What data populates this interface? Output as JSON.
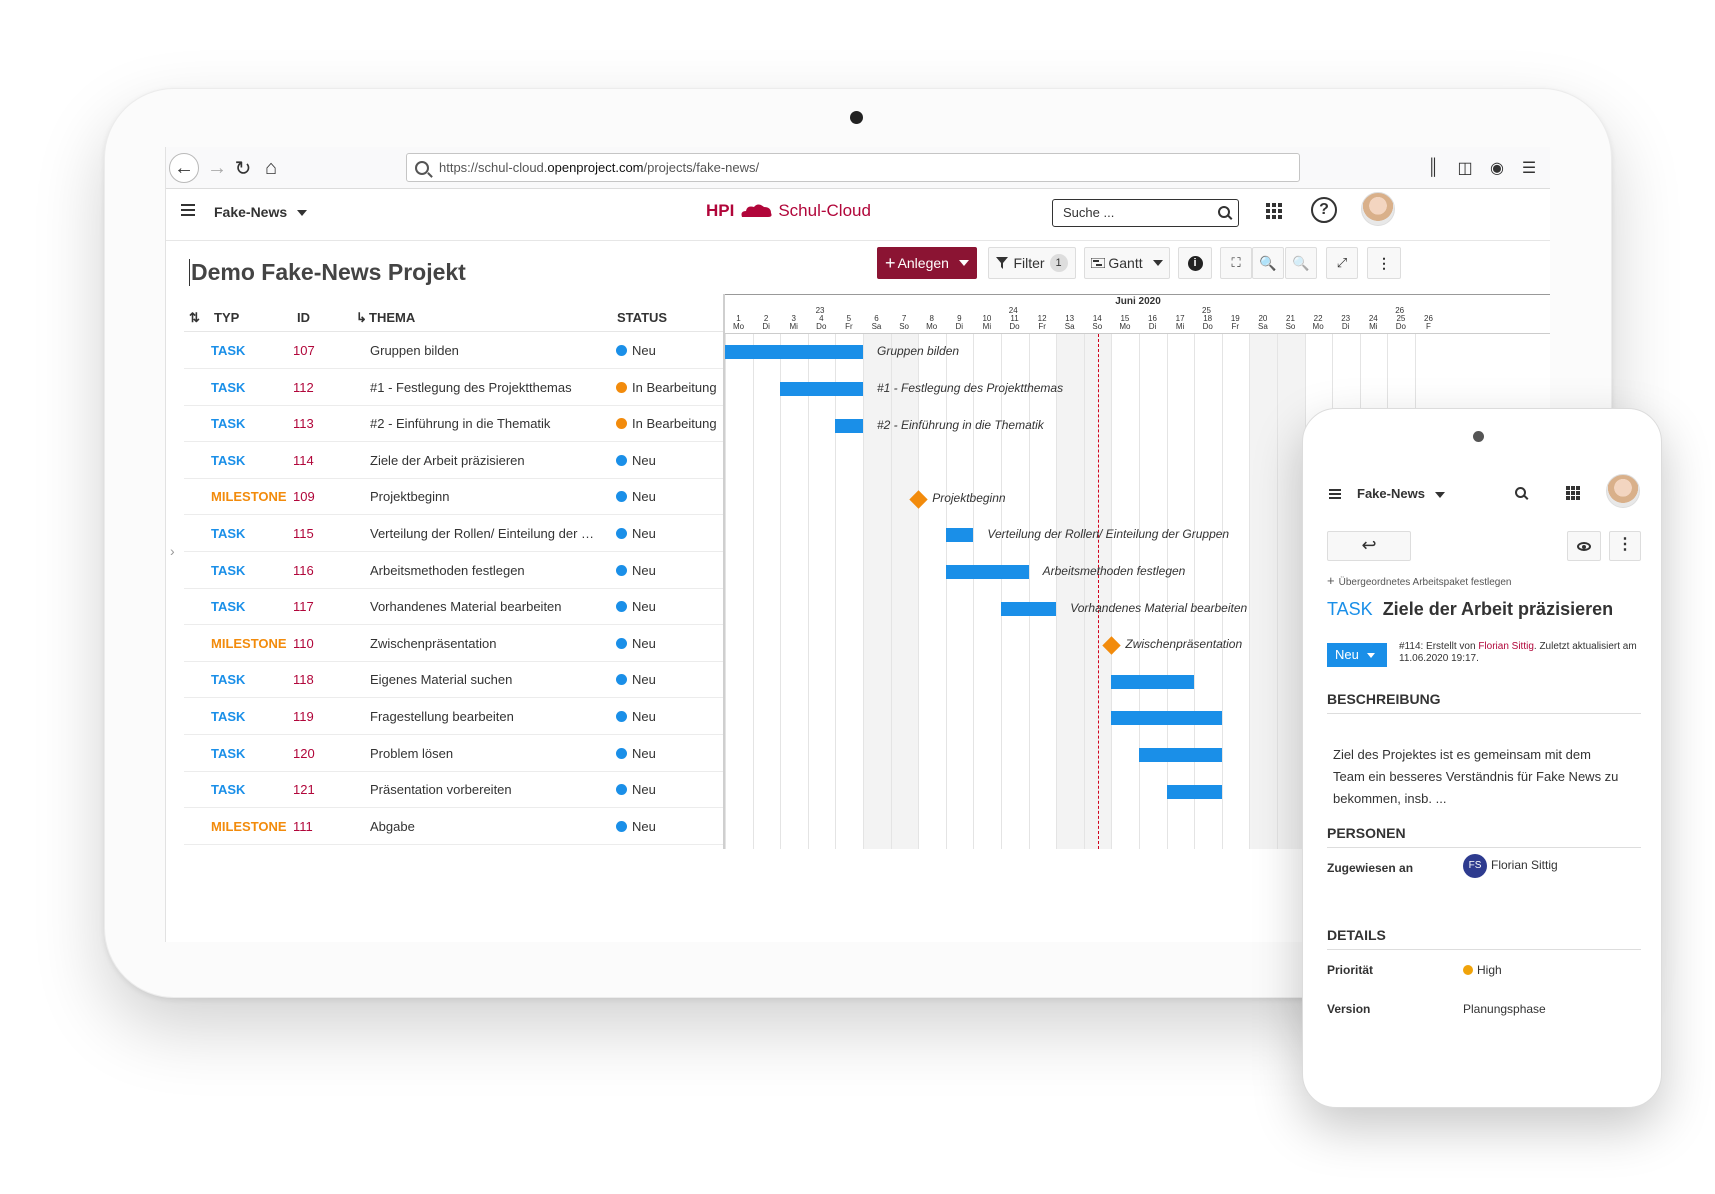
{
  "browser": {
    "url_prefix": "https://schul-cloud.",
    "url_domain": "openproject.com",
    "url_path": "/projects/fake-news/"
  },
  "header": {
    "project": "Fake-News",
    "logo_hpi": "HPI",
    "logo_name": "Schul-Cloud",
    "search_placeholder": "Suche ..."
  },
  "toolbar": {
    "title": "Demo Fake-News Projekt",
    "create": "Anlegen",
    "filter": "Filter",
    "filter_count": "1",
    "gantt": "Gantt"
  },
  "table": {
    "headers": {
      "type": "TYP",
      "id": "ID",
      "subject": "THEMA",
      "status": "STATUS"
    },
    "rows": [
      {
        "type": "TASK",
        "id": "107",
        "subject": "Gruppen bilden",
        "status": "Neu"
      },
      {
        "type": "TASK",
        "id": "112",
        "subject": "#1 - Festlegung des Projektthemas",
        "status": "In Bearbeitung"
      },
      {
        "type": "TASK",
        "id": "113",
        "subject": "#2 - Einführung in die Thematik",
        "status": "In Bearbeitung"
      },
      {
        "type": "TASK",
        "id": "114",
        "subject": "Ziele der Arbeit präzisieren",
        "status": "Neu"
      },
      {
        "type": "MILESTONE",
        "id": "109",
        "subject": "Projektbeginn",
        "status": "Neu"
      },
      {
        "type": "TASK",
        "id": "115",
        "subject": "Verteilung der Rollen/ Einteilung der Gr...",
        "status": "Neu"
      },
      {
        "type": "TASK",
        "id": "116",
        "subject": "Arbeitsmethoden festlegen",
        "status": "Neu"
      },
      {
        "type": "TASK",
        "id": "117",
        "subject": "Vorhandenes Material bearbeiten",
        "status": "Neu"
      },
      {
        "type": "MILESTONE",
        "id": "110",
        "subject": "Zwischenpräsentation",
        "status": "Neu"
      },
      {
        "type": "TASK",
        "id": "118",
        "subject": "Eigenes Material suchen",
        "status": "Neu"
      },
      {
        "type": "TASK",
        "id": "119",
        "subject": "Fragestellung bearbeiten",
        "status": "Neu"
      },
      {
        "type": "TASK",
        "id": "120",
        "subject": "Problem lösen",
        "status": "Neu"
      },
      {
        "type": "TASK",
        "id": "121",
        "subject": "Präsentation vorbereiten",
        "status": "Neu"
      },
      {
        "type": "MILESTONE",
        "id": "111",
        "subject": "Abgabe",
        "status": "Neu"
      }
    ]
  },
  "gantt": {
    "month": "Juni 2020",
    "weeks": [
      "23",
      "24",
      "25",
      "26"
    ],
    "days": [
      "1",
      "2",
      "3",
      "4",
      "5",
      "6",
      "7",
      "8",
      "9",
      "10",
      "11",
      "12",
      "13",
      "14",
      "15",
      "16",
      "17",
      "18",
      "19",
      "20",
      "21",
      "22",
      "23",
      "24",
      "25",
      "26"
    ],
    "weekdays": [
      "Mo",
      "Di",
      "Mi",
      "Do",
      "Fr",
      "Sa",
      "So",
      "Mo",
      "Di",
      "Mi",
      "Do",
      "Fr",
      "Sa",
      "So",
      "Mo",
      "Di",
      "Mi",
      "Do",
      "Fr",
      "Sa",
      "So",
      "Mo",
      "Di",
      "Mi",
      "Do",
      "F"
    ],
    "items": [
      {
        "kind": "bar",
        "start_day": 1,
        "end_day": 5,
        "label": "Gruppen bilden"
      },
      {
        "kind": "bar",
        "start_day": 3,
        "end_day": 5,
        "label": "#1 - Festlegung des Projektthemas"
      },
      {
        "kind": "bar",
        "start_day": 5,
        "end_day": 5,
        "label": "#2 - Einführung in die Thematik"
      },
      {
        "kind": "none",
        "label": ""
      },
      {
        "kind": "milestone",
        "start_day": 8,
        "label": "Projektbeginn"
      },
      {
        "kind": "bar",
        "start_day": 9,
        "end_day": 9,
        "label": "Verteilung der Rollen/ Einteilung der Gruppen"
      },
      {
        "kind": "bar",
        "start_day": 9,
        "end_day": 11,
        "label": "Arbeitsmethoden festlegen"
      },
      {
        "kind": "bar",
        "start_day": 11,
        "end_day": 12,
        "label": "Vorhandenes Material bearbeiten"
      },
      {
        "kind": "milestone",
        "start_day": 15,
        "label": "Zwischenpräsentation"
      },
      {
        "kind": "bar",
        "start_day": 15,
        "end_day": 17,
        "label": ""
      },
      {
        "kind": "bar",
        "start_day": 15,
        "end_day": 18,
        "label": ""
      },
      {
        "kind": "bar",
        "start_day": 16,
        "end_day": 18,
        "label": ""
      },
      {
        "kind": "bar",
        "start_day": 17,
        "end_day": 18,
        "label": ""
      },
      {
        "kind": "none",
        "label": ""
      }
    ],
    "today_day": 14.5
  },
  "phone": {
    "project": "Fake-News",
    "parent_link": "Übergeordnetes Arbeitspaket festlegen",
    "type": "TASK",
    "title": "Ziele der Arbeit präzisieren",
    "status": "Neu",
    "meta_prefix": "#114: Erstellt von ",
    "meta_author": "Florian Sittig",
    "meta_suffix": ". Zuletzt aktualisiert am 11.06.2020 19:17.",
    "section_description": "BESCHREIBUNG",
    "description": "Ziel des Projektes ist es gemeinsam mit dem Team ein besseres Verständnis für Fake News zu bekommen, insb. ...",
    "section_people": "PERSONEN",
    "assigned_label": "Zugewiesen an",
    "assignee_initials": "FS",
    "assignee": "Florian Sittig",
    "section_details": "DETAILS",
    "priority_label": "Priorität",
    "priority": "High",
    "version_label": "Version",
    "version": "Planungsphase"
  }
}
